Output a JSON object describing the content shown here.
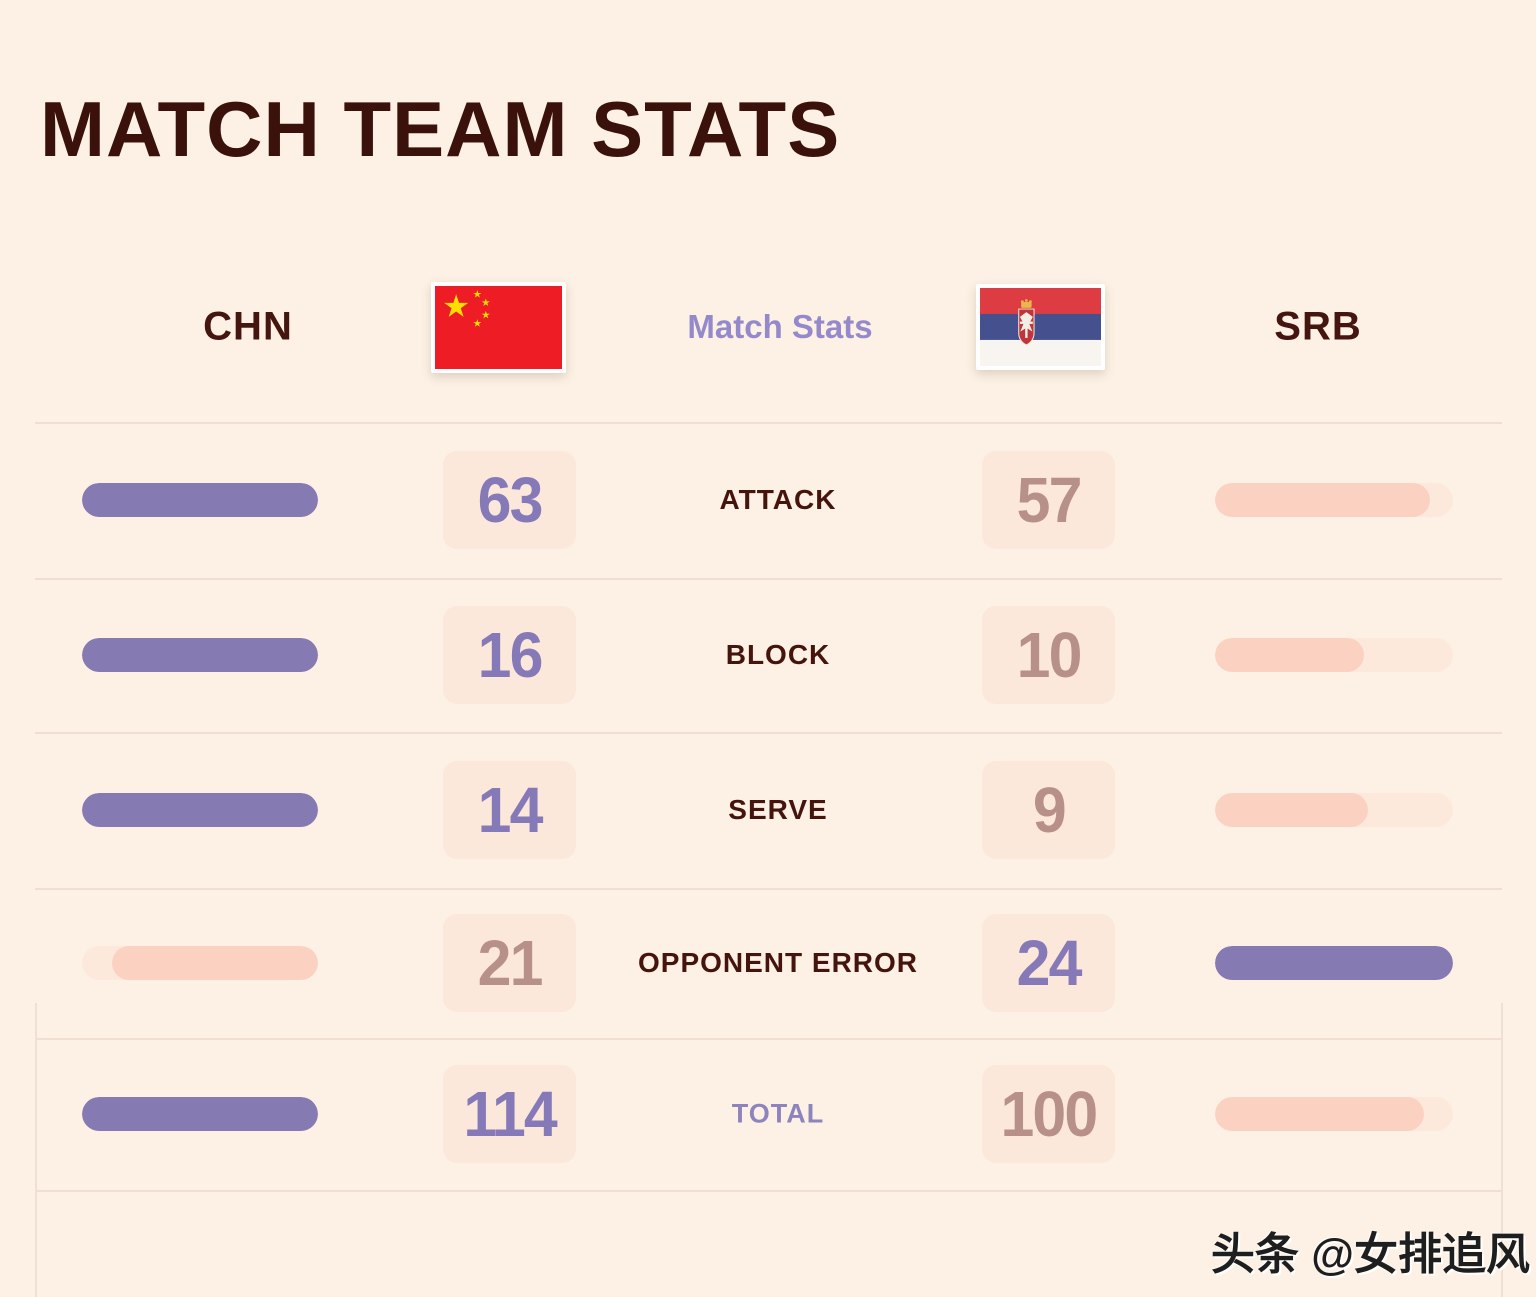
{
  "title": "MATCH TEAM STATS",
  "header": {
    "home_code": "CHN",
    "away_code": "SRB",
    "center_label": "Match Stats",
    "home_flag": "china-flag",
    "away_flag": "serbia-flag"
  },
  "rows": [
    {
      "label": "ATTACK",
      "chn": 63,
      "srb": 57
    },
    {
      "label": "BLOCK",
      "chn": 16,
      "srb": 10
    },
    {
      "label": "SERVE",
      "chn": 14,
      "srb": 9
    },
    {
      "label": "OPPONENT ERROR",
      "chn": 21,
      "srb": 24
    },
    {
      "label": "TOTAL",
      "chn": 114,
      "srb": 100
    }
  ],
  "watermark": "头条 @女排追风",
  "colors": {
    "background": "#fcf1e4",
    "title_brown": "#3a110b",
    "label_brown": "#45150d",
    "accent_purple": "#867ab2",
    "accent_pink": "#fbd2c1",
    "number_win_purple": "#8679b8",
    "number_lose_mauve": "#b7908a",
    "center_label_purple": "#9489cb",
    "card_peach": "#fbe8da",
    "divider": "#f0dfd1"
  },
  "chart_data": {
    "type": "bar",
    "title": "MATCH TEAM STATS",
    "categories": [
      "ATTACK",
      "BLOCK",
      "SERVE",
      "OPPONENT ERROR",
      "TOTAL"
    ],
    "series": [
      {
        "name": "CHN",
        "values": [
          63,
          16,
          14,
          21,
          114
        ]
      },
      {
        "name": "SRB",
        "values": [
          57,
          10,
          9,
          24,
          100
        ]
      }
    ],
    "legend_position": "top",
    "grid": false,
    "layout_hint": "mirrored horizontal pill bars per category; each side's bar length proportional to value/max(row); winning side purple, losing side pink"
  }
}
